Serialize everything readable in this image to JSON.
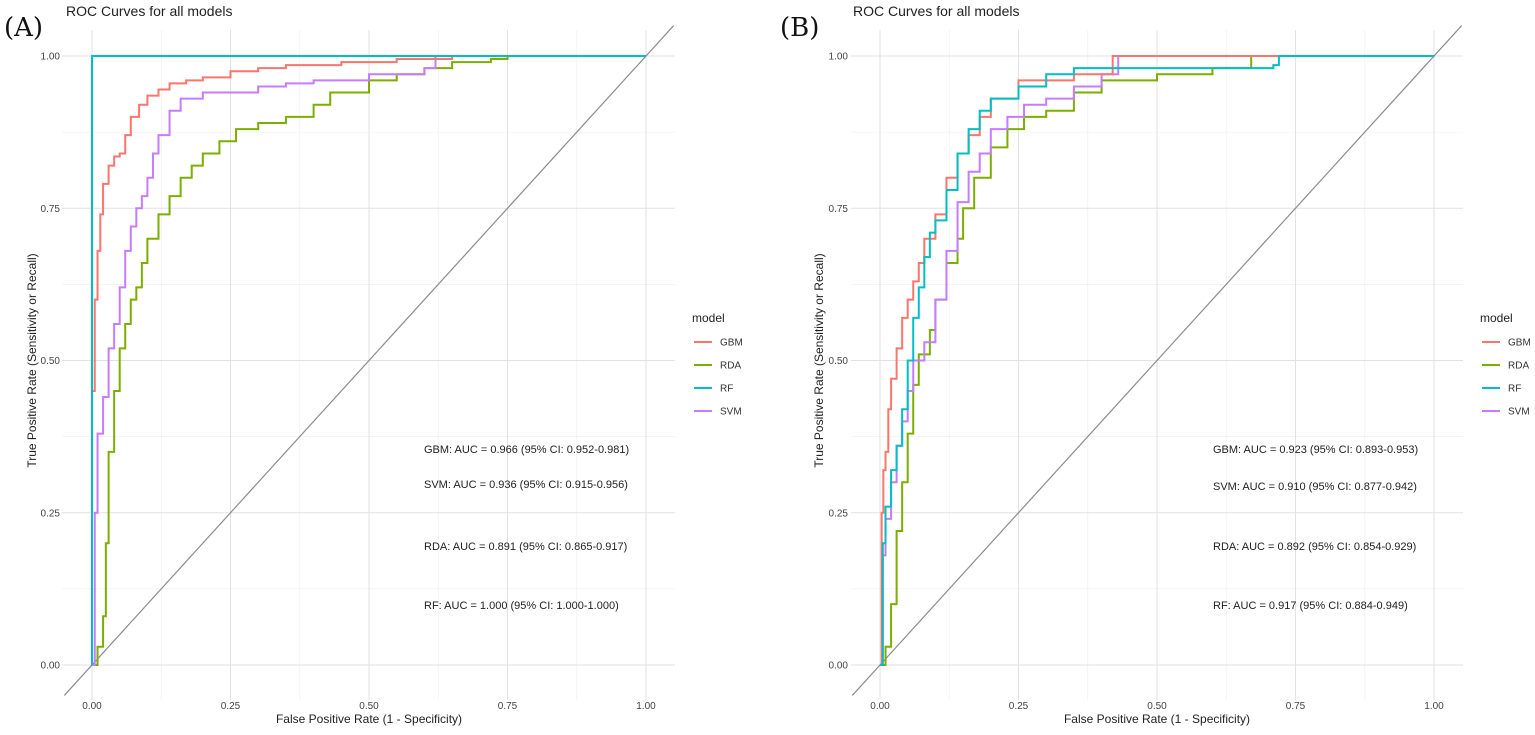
{
  "panels": [
    {
      "letter": "(A)",
      "title": "ROC Curves for all models"
    },
    {
      "letter": "(B)",
      "title": "ROC Curves for all models"
    }
  ],
  "legend": {
    "title": "model",
    "items": [
      {
        "label": "GBM",
        "color": "#F8766D"
      },
      {
        "label": "RDA",
        "color": "#7CAE00"
      },
      {
        "label": "RF",
        "color": "#00BFC4"
      },
      {
        "label": "SVM",
        "color": "#C77CFF"
      }
    ]
  },
  "chart_data": [
    {
      "type": "line",
      "title": "ROC Curves for all models",
      "xlabel": "False Positive Rate (1 - Specificity)",
      "ylabel": "True Positive Rate (Sensitivity or Recall)",
      "xlim": [
        0,
        1
      ],
      "ylim": [
        0,
        1
      ],
      "x_ticks": [
        "0.00",
        "0.25",
        "0.50",
        "0.75",
        "1.00"
      ],
      "y_ticks": [
        "0.00",
        "0.25",
        "0.50",
        "0.75",
        "1.00"
      ],
      "grid": true,
      "legend_position": "right",
      "reference_line": [
        [
          0,
          0
        ],
        [
          1,
          1
        ]
      ],
      "annotations": [
        "GBM: AUC = 0.966 (95% CI: 0.952-0.981)",
        "SVM: AUC = 0.936 (95% CI: 0.915-0.956)",
        "RDA: AUC = 0.891 (95% CI: 0.865-0.917)",
        "RF: AUC = 1.000 (95% CI: 1.000-1.000)"
      ],
      "series": [
        {
          "name": "GBM",
          "color": "#F8766D",
          "points": [
            [
              0,
              0
            ],
            [
              0,
              0.45
            ],
            [
              0.005,
              0.6
            ],
            [
              0.01,
              0.68
            ],
            [
              0.015,
              0.74
            ],
            [
              0.02,
              0.79
            ],
            [
              0.03,
              0.82
            ],
            [
              0.04,
              0.835
            ],
            [
              0.05,
              0.84
            ],
            [
              0.06,
              0.87
            ],
            [
              0.07,
              0.9
            ],
            [
              0.085,
              0.92
            ],
            [
              0.1,
              0.935
            ],
            [
              0.12,
              0.945
            ],
            [
              0.14,
              0.955
            ],
            [
              0.17,
              0.96
            ],
            [
              0.2,
              0.965
            ],
            [
              0.25,
              0.975
            ],
            [
              0.3,
              0.98
            ],
            [
              0.35,
              0.985
            ],
            [
              0.45,
              0.99
            ],
            [
              0.55,
              0.995
            ],
            [
              0.65,
              1.0
            ],
            [
              1,
              1
            ]
          ]
        },
        {
          "name": "RDA",
          "color": "#7CAE00",
          "points": [
            [
              0,
              0
            ],
            [
              0.01,
              0.03
            ],
            [
              0.02,
              0.08
            ],
            [
              0.025,
              0.2
            ],
            [
              0.03,
              0.35
            ],
            [
              0.04,
              0.45
            ],
            [
              0.05,
              0.52
            ],
            [
              0.06,
              0.56
            ],
            [
              0.07,
              0.6
            ],
            [
              0.08,
              0.62
            ],
            [
              0.09,
              0.66
            ],
            [
              0.1,
              0.7
            ],
            [
              0.12,
              0.74
            ],
            [
              0.14,
              0.77
            ],
            [
              0.16,
              0.8
            ],
            [
              0.18,
              0.82
            ],
            [
              0.2,
              0.84
            ],
            [
              0.23,
              0.86
            ],
            [
              0.26,
              0.88
            ],
            [
              0.3,
              0.89
            ],
            [
              0.35,
              0.9
            ],
            [
              0.4,
              0.92
            ],
            [
              0.43,
              0.94
            ],
            [
              0.5,
              0.96
            ],
            [
              0.55,
              0.97
            ],
            [
              0.6,
              0.98
            ],
            [
              0.65,
              0.99
            ],
            [
              0.72,
              0.995
            ],
            [
              0.75,
              1.0
            ],
            [
              1,
              1
            ]
          ]
        },
        {
          "name": "RF",
          "color": "#00BFC4",
          "points": [
            [
              0,
              0
            ],
            [
              0,
              1
            ],
            [
              1,
              1
            ]
          ]
        },
        {
          "name": "SVM",
          "color": "#C77CFF",
          "points": [
            [
              0,
              0
            ],
            [
              0.005,
              0.25
            ],
            [
              0.01,
              0.38
            ],
            [
              0.02,
              0.44
            ],
            [
              0.03,
              0.52
            ],
            [
              0.04,
              0.56
            ],
            [
              0.05,
              0.62
            ],
            [
              0.06,
              0.68
            ],
            [
              0.07,
              0.72
            ],
            [
              0.08,
              0.75
            ],
            [
              0.09,
              0.77
            ],
            [
              0.1,
              0.8
            ],
            [
              0.11,
              0.84
            ],
            [
              0.12,
              0.87
            ],
            [
              0.14,
              0.91
            ],
            [
              0.16,
              0.93
            ],
            [
              0.2,
              0.94
            ],
            [
              0.25,
              0.94
            ],
            [
              0.3,
              0.95
            ],
            [
              0.35,
              0.955
            ],
            [
              0.4,
              0.96
            ],
            [
              0.5,
              0.97
            ],
            [
              0.6,
              0.98
            ],
            [
              0.62,
              1.0
            ],
            [
              1,
              1
            ]
          ]
        }
      ]
    },
    {
      "type": "line",
      "title": "ROC Curves for all models",
      "xlabel": "False Positive Rate (1 - Specificity)",
      "ylabel": "True Positive Rate (Sensitivity or Recall)",
      "xlim": [
        0,
        1
      ],
      "ylim": [
        0,
        1
      ],
      "x_ticks": [
        "0.00",
        "0.25",
        "0.50",
        "0.75",
        "1.00"
      ],
      "y_ticks": [
        "0.00",
        "0.25",
        "0.50",
        "0.75",
        "1.00"
      ],
      "grid": true,
      "legend_position": "right",
      "reference_line": [
        [
          0,
          0
        ],
        [
          1,
          1
        ]
      ],
      "annotations": [
        "GBM: AUC = 0.923 (95% CI: 0.893-0.953)",
        "SVM: AUC = 0.910 (95% CI: 0.877-0.942)",
        "RDA: AUC = 0.892 (95% CI: 0.854-0.929)",
        "RF: AUC = 0.917 (95% CI: 0.884-0.949)"
      ],
      "series": [
        {
          "name": "GBM",
          "color": "#F8766D",
          "points": [
            [
              0,
              0
            ],
            [
              0.003,
              0.25
            ],
            [
              0.006,
              0.32
            ],
            [
              0.01,
              0.35
            ],
            [
              0.015,
              0.42
            ],
            [
              0.02,
              0.47
            ],
            [
              0.03,
              0.52
            ],
            [
              0.04,
              0.57
            ],
            [
              0.05,
              0.6
            ],
            [
              0.06,
              0.63
            ],
            [
              0.07,
              0.66
            ],
            [
              0.08,
              0.7
            ],
            [
              0.1,
              0.74
            ],
            [
              0.12,
              0.8
            ],
            [
              0.14,
              0.84
            ],
            [
              0.16,
              0.87
            ],
            [
              0.18,
              0.9
            ],
            [
              0.2,
              0.93
            ],
            [
              0.25,
              0.96
            ],
            [
              0.3,
              0.96
            ],
            [
              0.35,
              0.97
            ],
            [
              0.42,
              1.0
            ],
            [
              1,
              1
            ]
          ]
        },
        {
          "name": "RDA",
          "color": "#7CAE00",
          "points": [
            [
              0,
              0
            ],
            [
              0.01,
              0.03
            ],
            [
              0.02,
              0.1
            ],
            [
              0.03,
              0.22
            ],
            [
              0.04,
              0.3
            ],
            [
              0.05,
              0.38
            ],
            [
              0.06,
              0.46
            ],
            [
              0.07,
              0.51
            ],
            [
              0.09,
              0.55
            ],
            [
              0.1,
              0.6
            ],
            [
              0.12,
              0.66
            ],
            [
              0.14,
              0.7
            ],
            [
              0.15,
              0.75
            ],
            [
              0.17,
              0.8
            ],
            [
              0.2,
              0.85
            ],
            [
              0.23,
              0.88
            ],
            [
              0.26,
              0.9
            ],
            [
              0.3,
              0.91
            ],
            [
              0.35,
              0.94
            ],
            [
              0.4,
              0.96
            ],
            [
              0.5,
              0.97
            ],
            [
              0.6,
              0.98
            ],
            [
              0.67,
              1.0
            ],
            [
              1,
              1
            ]
          ]
        },
        {
          "name": "RF",
          "color": "#00BFC4",
          "points": [
            [
              0,
              0
            ],
            [
              0.005,
              0.2
            ],
            [
              0.01,
              0.26
            ],
            [
              0.02,
              0.32
            ],
            [
              0.03,
              0.36
            ],
            [
              0.04,
              0.42
            ],
            [
              0.05,
              0.5
            ],
            [
              0.06,
              0.57
            ],
            [
              0.07,
              0.62
            ],
            [
              0.08,
              0.67
            ],
            [
              0.09,
              0.71
            ],
            [
              0.1,
              0.73
            ],
            [
              0.12,
              0.78
            ],
            [
              0.14,
              0.84
            ],
            [
              0.16,
              0.88
            ],
            [
              0.18,
              0.91
            ],
            [
              0.2,
              0.93
            ],
            [
              0.25,
              0.95
            ],
            [
              0.3,
              0.97
            ],
            [
              0.35,
              0.98
            ],
            [
              0.45,
              0.98
            ],
            [
              0.6,
              0.98
            ],
            [
              0.71,
              0.985
            ],
            [
              0.72,
              1.0
            ],
            [
              1,
              1
            ]
          ]
        },
        {
          "name": "SVM",
          "color": "#C77CFF",
          "points": [
            [
              0,
              0
            ],
            [
              0.005,
              0.18
            ],
            [
              0.01,
              0.24
            ],
            [
              0.02,
              0.3
            ],
            [
              0.03,
              0.36
            ],
            [
              0.04,
              0.4
            ],
            [
              0.05,
              0.45
            ],
            [
              0.06,
              0.5
            ],
            [
              0.08,
              0.53
            ],
            [
              0.1,
              0.6
            ],
            [
              0.12,
              0.68
            ],
            [
              0.14,
              0.76
            ],
            [
              0.16,
              0.81
            ],
            [
              0.18,
              0.84
            ],
            [
              0.2,
              0.88
            ],
            [
              0.23,
              0.9
            ],
            [
              0.26,
              0.92
            ],
            [
              0.3,
              0.93
            ],
            [
              0.35,
              0.95
            ],
            [
              0.4,
              0.97
            ],
            [
              0.43,
              1.0
            ],
            [
              1,
              1
            ]
          ]
        }
      ]
    }
  ]
}
